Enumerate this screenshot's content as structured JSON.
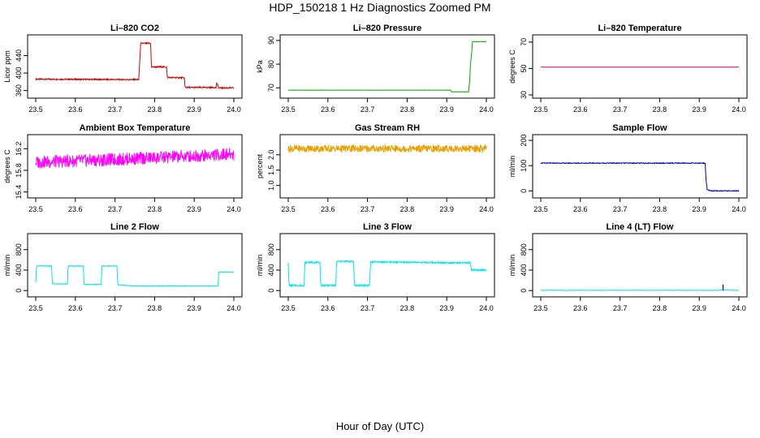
{
  "page": {
    "title": "HDP_150218  1 Hz Diagnostics Zoomed PM",
    "xlabel": "Hour of Day (UTC)"
  },
  "chart_data": [
    {
      "type": "line",
      "title": "Li–820 CO2",
      "ylabel": "Licor ppm",
      "xlim": [
        23.5,
        24.0
      ],
      "ylim": [
        350,
        480
      ],
      "xticks": [
        "23.5",
        "23.6",
        "23.7",
        "23.8",
        "23.9",
        "24.0"
      ],
      "yticks": [
        360,
        400,
        440
      ],
      "color": "#d40000",
      "noise": 1.5,
      "series": [
        {
          "values": [
            [
              23.5,
              386
            ],
            [
              23.76,
              385
            ],
            [
              23.765,
              468
            ],
            [
              23.79,
              468
            ],
            [
              23.792,
              414
            ],
            [
              23.83,
              414
            ],
            [
              23.832,
              390
            ],
            [
              23.875,
              389
            ],
            [
              23.877,
              367
            ],
            [
              23.955,
              367
            ],
            [
              23.957,
              378
            ],
            [
              23.962,
              366
            ],
            [
              24.0,
              366
            ]
          ]
        }
      ]
    },
    {
      "type": "line",
      "title": "Li–820 Pressure",
      "ylabel": "kPa",
      "xlim": [
        23.5,
        24.0
      ],
      "ylim": [
        67,
        91
      ],
      "xticks": [
        "23.5",
        "23.6",
        "23.7",
        "23.8",
        "23.9",
        "24.0"
      ],
      "yticks": [
        70,
        80,
        90
      ],
      "color": "#00aa00",
      "noise": 0.05,
      "series": [
        {
          "values": [
            [
              23.5,
              69.0
            ],
            [
              23.91,
              69.0
            ],
            [
              23.912,
              68.3
            ],
            [
              23.955,
              68.3
            ],
            [
              23.958,
              73
            ],
            [
              23.96,
              80
            ],
            [
              23.963,
              85
            ],
            [
              23.965,
              89.5
            ],
            [
              24.0,
              89.5
            ]
          ]
        }
      ]
    },
    {
      "type": "line",
      "title": "Li–820 Temperature",
      "ylabel": "degrees C",
      "xlim": [
        23.5,
        24.0
      ],
      "ylim": [
        30,
        73
      ],
      "xticks": [
        "23.5",
        "23.6",
        "23.7",
        "23.8",
        "23.9",
        "24.0"
      ],
      "yticks": [
        30,
        50,
        70
      ],
      "color": "#cc0066",
      "noise": 0,
      "series": [
        {
          "values": [
            [
              23.5,
              51.0
            ],
            [
              24.0,
              51.0
            ]
          ]
        }
      ]
    },
    {
      "type": "line",
      "title": "Ambient Box Temperature",
      "ylabel": "degrees C",
      "xlim": [
        23.5,
        24.0
      ],
      "ylim": [
        15.35,
        16.4
      ],
      "xticks": [
        "23.5",
        "23.6",
        "23.7",
        "23.8",
        "23.9",
        "24.0"
      ],
      "yticks": [
        "15.4",
        "15.8",
        "16.2"
      ],
      "color": "#ff00ff",
      "noise": 0.12,
      "series": [
        {
          "values": [
            [
              23.5,
              15.95
            ],
            [
              23.7,
              16.0
            ],
            [
              23.85,
              16.05
            ],
            [
              24.0,
              16.1
            ]
          ]
        }
      ]
    },
    {
      "type": "line",
      "title": "Gas Stream RH",
      "ylabel": "percent",
      "xlim": [
        23.5,
        24.0
      ],
      "ylim": [
        0.7,
        2.55
      ],
      "xticks": [
        "23.5",
        "23.6",
        "23.7",
        "23.8",
        "23.9",
        "24.0"
      ],
      "yticks": [
        "1.0",
        "1.5",
        "2.0"
      ],
      "color": "#e8a000",
      "noise": 0.12,
      "series": [
        {
          "values": [
            [
              23.5,
              2.2
            ],
            [
              24.0,
              2.2
            ]
          ]
        }
      ]
    },
    {
      "type": "line",
      "title": "Sample Flow",
      "ylabel": "ml/min",
      "xlim": [
        23.5,
        24.0
      ],
      "ylim": [
        -15,
        210
      ],
      "xticks": [
        "23.5",
        "23.6",
        "23.7",
        "23.8",
        "23.9",
        "24.0"
      ],
      "yticks": [
        0,
        100,
        200
      ],
      "color": "#0000aa",
      "noise": 1.5,
      "series": [
        {
          "values": [
            [
              23.5,
              110
            ],
            [
              23.915,
              110
            ],
            [
              23.917,
              45
            ],
            [
              23.92,
              5
            ],
            [
              23.93,
              0
            ],
            [
              24.0,
              0
            ]
          ]
        }
      ]
    },
    {
      "type": "line",
      "title": "Line 2 Flow",
      "ylabel": "ml/min",
      "xlim": [
        23.5,
        24.0
      ],
      "ylim": [
        -60,
        1050
      ],
      "xticks": [
        "23.5",
        "23.6",
        "23.7",
        "23.8",
        "23.9",
        "24.0"
      ],
      "yticks": [
        0,
        400,
        800
      ],
      "color": "#00e5ee",
      "noise": 6,
      "series": [
        {
          "values": [
            [
              23.5,
              150
            ],
            [
              23.502,
              480
            ],
            [
              23.54,
              480
            ],
            [
              23.542,
              130
            ],
            [
              23.58,
              130
            ],
            [
              23.582,
              480
            ],
            [
              23.62,
              480
            ],
            [
              23.622,
              120
            ],
            [
              23.665,
              120
            ],
            [
              23.667,
              480
            ],
            [
              23.705,
              480
            ],
            [
              23.707,
              110
            ],
            [
              23.75,
              90
            ],
            [
              23.96,
              90
            ],
            [
              23.962,
              360
            ],
            [
              24.0,
              360
            ]
          ]
        }
      ]
    },
    {
      "type": "line",
      "title": "Line 3 Flow",
      "ylabel": "ml/min",
      "xlim": [
        23.5,
        24.0
      ],
      "ylim": [
        -60,
        1050
      ],
      "xticks": [
        "23.5",
        "23.6",
        "23.7",
        "23.8",
        "23.9",
        "24.0"
      ],
      "yticks": [
        0,
        400,
        800
      ],
      "color": "#00e5ee",
      "noise": 15,
      "series": [
        {
          "values": [
            [
              23.5,
              560
            ],
            [
              23.502,
              100
            ],
            [
              23.54,
              100
            ],
            [
              23.542,
              550
            ],
            [
              23.58,
              550
            ],
            [
              23.582,
              100
            ],
            [
              23.62,
              100
            ],
            [
              23.622,
              570
            ],
            [
              23.665,
              570
            ],
            [
              23.667,
              100
            ],
            [
              23.705,
              100
            ],
            [
              23.708,
              560
            ],
            [
              23.96,
              540
            ],
            [
              23.962,
              400
            ],
            [
              24.0,
              400
            ]
          ]
        }
      ]
    },
    {
      "type": "line",
      "title": "Line 4 (LT) Flow",
      "ylabel": "ml/min",
      "xlim": [
        23.5,
        24.0
      ],
      "ylim": [
        -60,
        1050
      ],
      "xticks": [
        "23.5",
        "23.6",
        "23.7",
        "23.8",
        "23.9",
        "24.0"
      ],
      "yticks": [
        0,
        400,
        800
      ],
      "color": "#00e5ee",
      "noise": 3,
      "series": [
        {
          "values": [
            [
              23.5,
              5
            ],
            [
              23.95,
              5
            ],
            [
              23.955,
              10
            ],
            [
              24.0,
              5
            ]
          ]
        }
      ],
      "annotations": [
        {
          "x": 23.96,
          "y": 120,
          "color": "#0000cc"
        }
      ]
    }
  ]
}
